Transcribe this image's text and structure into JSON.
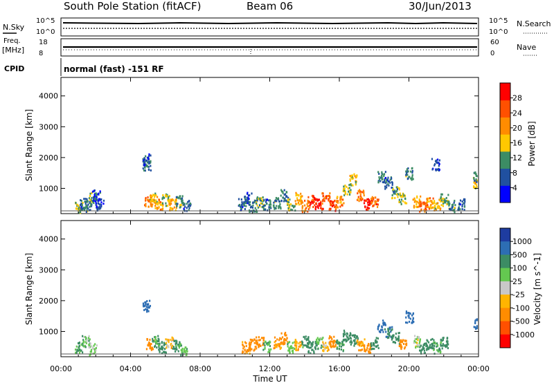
{
  "header": {
    "station": "South Pole Station (fitACF)",
    "beam": "Beam 06",
    "date": "30/Jun/2013"
  },
  "noise_panel": {
    "left_label": "N.Sky",
    "right_label": "N.Search",
    "tick_top": "10^5",
    "tick_bottom": "10^0"
  },
  "freq_panel": {
    "left_label_1": "Freq.",
    "left_label_2": "[MHz]",
    "right_label": "Nave",
    "left_tick_top": "18",
    "left_tick_bottom": "8",
    "right_tick_top": "60",
    "right_tick_bottom": "0"
  },
  "cpid": {
    "label": "CPID",
    "mode": "normal (fast) -151 RF"
  },
  "chart_data": [
    {
      "type": "heatmap",
      "title": "",
      "ylabel": "Slant Range [km]",
      "xlabel": "Time UT",
      "x_tick_labels": [
        "00:00",
        "04:00",
        "08:00",
        "12:00",
        "16:00",
        "20:00",
        "00:00"
      ],
      "x_ticks_hours": [
        0,
        4,
        8,
        12,
        16,
        20,
        24
      ],
      "xlim_hours": [
        0,
        24
      ],
      "ylim_km": [
        180,
        4600
      ],
      "y_ticks": [
        1000,
        2000,
        3000,
        4000
      ],
      "colorbar_label": "Power [dB]",
      "colorbar_ticks": [
        "28",
        "24",
        "20",
        "16",
        "12",
        "8",
        "4"
      ],
      "colorbar_range": [
        0,
        32
      ],
      "colors": [
        "#0000ff",
        "#2050a0",
        "#3c8c64",
        "#ffc800",
        "#ff8c00",
        "#ff5000",
        "#ff0000"
      ]
    },
    {
      "type": "heatmap",
      "title": "",
      "ylabel": "Slant Range [km]",
      "xlabel": "Time UT",
      "x_tick_labels": [
        "00:00",
        "04:00",
        "08:00",
        "12:00",
        "16:00",
        "20:00",
        "00:00"
      ],
      "x_ticks_hours": [
        0,
        4,
        8,
        12,
        16,
        20,
        24
      ],
      "xlim_hours": [
        0,
        24
      ],
      "ylim_km": [
        180,
        4600
      ],
      "y_ticks": [
        1000,
        2000,
        3000,
        4000
      ],
      "colorbar_label": "Velocity [m s^-1]",
      "colorbar_ticks": [
        "1000",
        "500",
        "100",
        "25",
        "-25",
        "-100",
        "-500",
        "-1000"
      ],
      "colorbar_levels": [
        1500,
        1000,
        500,
        100,
        25,
        -25,
        -100,
        -500,
        -1000,
        -1500
      ],
      "colors": [
        "#1e3ca0",
        "#2d6eb4",
        "#3c8c64",
        "#64c850",
        "#c8c8c8",
        "#ffb400",
        "#ff8c00",
        "#ff5000",
        "#ff0000"
      ]
    }
  ],
  "backscatter_estimate": {
    "power_cells": [
      [
        1.0,
        400,
        14
      ],
      [
        1.3,
        550,
        8
      ],
      [
        1.5,
        450,
        10
      ],
      [
        1.8,
        700,
        12
      ],
      [
        2.2,
        500,
        6
      ],
      [
        4.9,
        1800,
        9
      ],
      [
        4.9,
        1950,
        7
      ],
      [
        5.0,
        600,
        22
      ],
      [
        5.3,
        700,
        16
      ],
      [
        5.6,
        500,
        20
      ],
      [
        6.0,
        650,
        14
      ],
      [
        6.4,
        500,
        18
      ],
      [
        6.8,
        600,
        12
      ],
      [
        7.2,
        450,
        8
      ],
      [
        2.0,
        800,
        6
      ],
      [
        10.4,
        500,
        8
      ],
      [
        10.7,
        700,
        6
      ],
      [
        11.0,
        450,
        10
      ],
      [
        11.4,
        600,
        12
      ],
      [
        11.8,
        500,
        8
      ],
      [
        12.4,
        550,
        10
      ],
      [
        12.8,
        800,
        8
      ],
      [
        13.2,
        500,
        14
      ],
      [
        13.6,
        700,
        18
      ],
      [
        14.0,
        450,
        22
      ],
      [
        14.4,
        600,
        26
      ],
      [
        14.8,
        500,
        28
      ],
      [
        15.2,
        700,
        24
      ],
      [
        15.6,
        450,
        26
      ],
      [
        16.0,
        600,
        20
      ],
      [
        16.4,
        1000,
        14
      ],
      [
        16.8,
        1300,
        16
      ],
      [
        17.2,
        800,
        22
      ],
      [
        17.6,
        500,
        28
      ],
      [
        18.0,
        600,
        24
      ],
      [
        18.4,
        1400,
        10
      ],
      [
        18.8,
        1200,
        8
      ],
      [
        19.2,
        900,
        12
      ],
      [
        19.6,
        700,
        14
      ],
      [
        20.0,
        1500,
        10
      ],
      [
        20.4,
        600,
        18
      ],
      [
        20.8,
        450,
        24
      ],
      [
        21.2,
        550,
        20
      ],
      [
        21.6,
        500,
        16
      ],
      [
        22.0,
        650,
        12
      ],
      [
        22.4,
        450,
        10
      ],
      [
        23.0,
        500,
        8
      ],
      [
        23.9,
        1200,
        16
      ],
      [
        23.9,
        1400,
        10
      ],
      [
        21.5,
        1800,
        6
      ]
    ],
    "velocity_cells": [
      [
        1.0,
        500,
        100
      ],
      [
        1.4,
        700,
        60
      ],
      [
        1.8,
        450,
        40
      ],
      [
        4.9,
        1850,
        800
      ],
      [
        5.1,
        600,
        -200
      ],
      [
        5.4,
        700,
        120
      ],
      [
        5.8,
        500,
        200
      ],
      [
        6.2,
        650,
        -60
      ],
      [
        6.6,
        550,
        150
      ],
      [
        7.0,
        450,
        80
      ],
      [
        10.6,
        500,
        -150
      ],
      [
        11.0,
        600,
        -300
      ],
      [
        11.4,
        700,
        -200
      ],
      [
        11.8,
        550,
        90
      ],
      [
        12.4,
        650,
        -120
      ],
      [
        12.8,
        800,
        -400
      ],
      [
        13.2,
        500,
        60
      ],
      [
        13.6,
        600,
        -80
      ],
      [
        14.0,
        700,
        150
      ],
      [
        14.4,
        500,
        200
      ],
      [
        14.8,
        650,
        80
      ],
      [
        15.2,
        500,
        -60
      ],
      [
        15.6,
        700,
        -250
      ],
      [
        16.0,
        550,
        120
      ],
      [
        16.4,
        900,
        400
      ],
      [
        16.8,
        750,
        200
      ],
      [
        17.2,
        600,
        -90
      ],
      [
        17.6,
        500,
        -180
      ],
      [
        18.0,
        650,
        300
      ],
      [
        18.4,
        1200,
        700
      ],
      [
        18.8,
        1000,
        500
      ],
      [
        19.2,
        800,
        250
      ],
      [
        19.6,
        600,
        -300
      ],
      [
        20.0,
        1500,
        900
      ],
      [
        20.4,
        700,
        20
      ],
      [
        20.8,
        500,
        150
      ],
      [
        21.2,
        600,
        300
      ],
      [
        21.6,
        500,
        100
      ],
      [
        22.0,
        650,
        200
      ],
      [
        23.9,
        1300,
        700
      ]
    ]
  }
}
